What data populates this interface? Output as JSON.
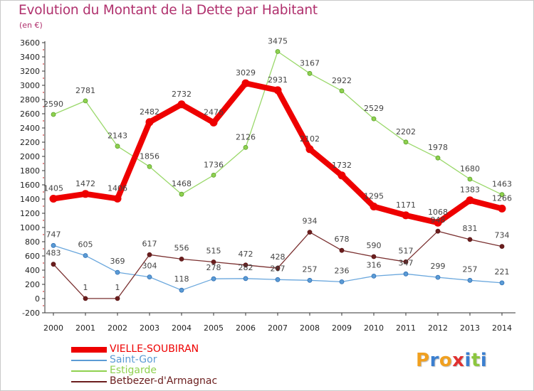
{
  "chart_data": {
    "type": "line",
    "title": "Evolution du Montant de la Dette par Habitant",
    "subtitle": "(en €)",
    "x": [
      "2000",
      "2001",
      "2002",
      "2003",
      "2004",
      "2005",
      "2006",
      "2007",
      "2008",
      "2009",
      "2010",
      "2011",
      "2012",
      "2013",
      "2014"
    ],
    "ylim": [
      -200,
      3600
    ],
    "yticks": [
      -200,
      0,
      200,
      400,
      600,
      800,
      1000,
      1200,
      1400,
      1600,
      1800,
      2000,
      2200,
      2400,
      2600,
      2800,
      3000,
      3200,
      3400,
      3600
    ],
    "grid": false,
    "legend_position": "bottom-left",
    "series": [
      {
        "name": "VIELLE-SOUBIRAN",
        "color": "#ee0000",
        "values": [
          1405,
          1472,
          1406,
          2482,
          2732,
          2476,
          3029,
          2931,
          2102,
          1732,
          1295,
          1171,
          1068,
          1383,
          1266
        ]
      },
      {
        "name": "Saint-Gor",
        "color": "#5b9bd5",
        "values": [
          747,
          605,
          369,
          304,
          118,
          278,
          282,
          267,
          257,
          236,
          316,
          347,
          299,
          257,
          221
        ]
      },
      {
        "name": "Estigarde",
        "color": "#8fd14f",
        "values": [
          2590,
          2781,
          2143,
          1856,
          1468,
          1736,
          2126,
          3475,
          3167,
          2922,
          2529,
          2202,
          1978,
          1680,
          1463
        ]
      },
      {
        "name": "Betbezer-d'Armagnac",
        "color": "#6b1e1e",
        "values": [
          483,
          1,
          1,
          617,
          556,
          515,
          472,
          428,
          934,
          678,
          590,
          517,
          948,
          831,
          734
        ]
      }
    ]
  },
  "brand": {
    "logo_letters": [
      "P",
      "r",
      "o",
      "x",
      "i",
      "t",
      "i"
    ],
    "logo_colors": [
      "#f0a020",
      "#3b7fd0",
      "#f0a020",
      "#e03030",
      "#3b7fd0",
      "#8cc63f",
      "#3b7fd0"
    ]
  }
}
